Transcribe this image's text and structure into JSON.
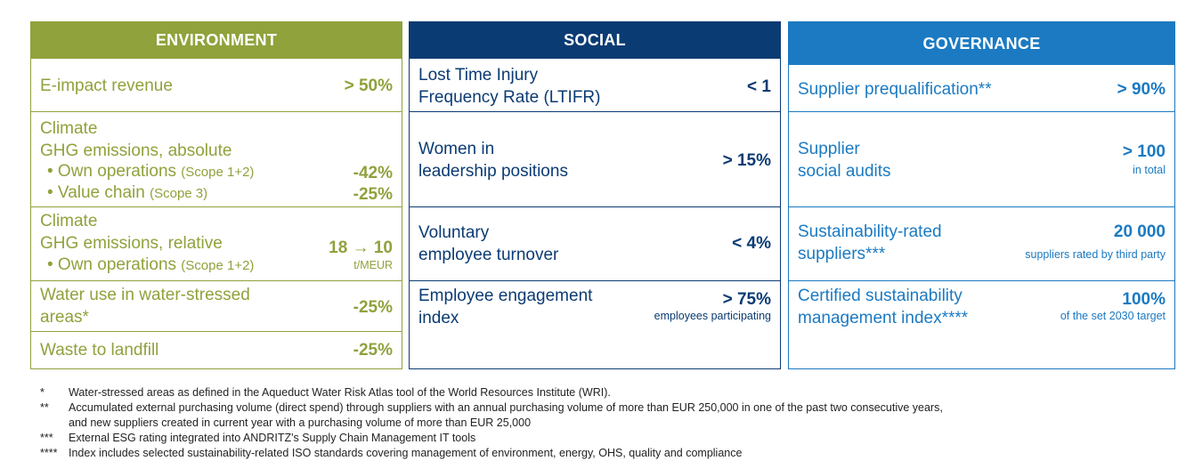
{
  "environment": {
    "title": "ENVIRONMENT",
    "rows": [
      {
        "label": "E-impact revenue",
        "value": "> 50%"
      },
      {
        "line1": "Climate",
        "line2": "GHG emissions, absolute",
        "b1": "• Own operations",
        "b1s": "(Scope 1+2)",
        "v1": "-42%",
        "b2": "• Value chain",
        "b2s": "(Scope 3)",
        "v2": "-25%"
      },
      {
        "line1": "Climate",
        "line2": "GHG emissions, relative",
        "b1": "• Own operations",
        "b1s": "(Scope 1+2)",
        "value": "18 → 10",
        "sub": "t/MEUR"
      },
      {
        "line1": "Water use in water-stressed",
        "line2": "areas*",
        "value": "-25%"
      },
      {
        "label": "Waste to landfill",
        "value": "-25%"
      }
    ]
  },
  "social": {
    "title": "SOCIAL",
    "rows": [
      {
        "line1": "Lost Time Injury",
        "line2": "Frequency Rate (LTIFR)",
        "value": "< 1"
      },
      {
        "line1": "Women in",
        "line2": "leadership positions",
        "value": "> 15%"
      },
      {
        "line1": "Voluntary",
        "line2": "employee turnover",
        "value": "< 4%"
      },
      {
        "line1": "Employee engagement",
        "line2": "index",
        "value": "> 75%",
        "sub": "employees participating"
      }
    ]
  },
  "governance": {
    "title": "GOVERNANCE",
    "rows": [
      {
        "label": "Supplier prequalification**",
        "value": "> 90%"
      },
      {
        "line1": "Supplier",
        "line2": "social audits",
        "value": "> 100",
        "sub": "in total"
      },
      {
        "line1": "Sustainability-rated",
        "line2": "suppliers***",
        "value": "20 000",
        "sub": "suppliers  rated by third party"
      },
      {
        "line1": "Certified sustainability",
        "line2": "management index****",
        "value": "100%",
        "sub": "of the set 2030 target"
      }
    ]
  },
  "footnotes": [
    {
      "mark": "*",
      "text": "Water-stressed areas as defined in the Aqueduct Water Risk Atlas tool of the World Resources Institute (WRI)."
    },
    {
      "mark": "**",
      "text": "Accumulated external purchasing volume (direct spend) through suppliers with an annual purchasing volume of more than EUR 250,000 in one of the past two consecutive years,",
      "text2": "and new suppliers created in current year with a purchasing volume of more than EUR 25,000"
    },
    {
      "mark": "***",
      "text": "External ESG rating integrated into ANDRITZ's Supply Chain Management IT tools"
    },
    {
      "mark": "****",
      "text": "Index includes selected sustainability-related ISO standards covering management of environment, energy, OHS, quality and compliance"
    }
  ]
}
